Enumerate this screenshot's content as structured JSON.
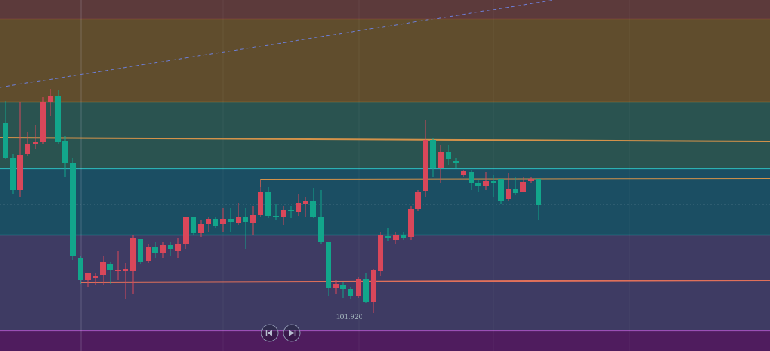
{
  "price_label": "101.920"
}
